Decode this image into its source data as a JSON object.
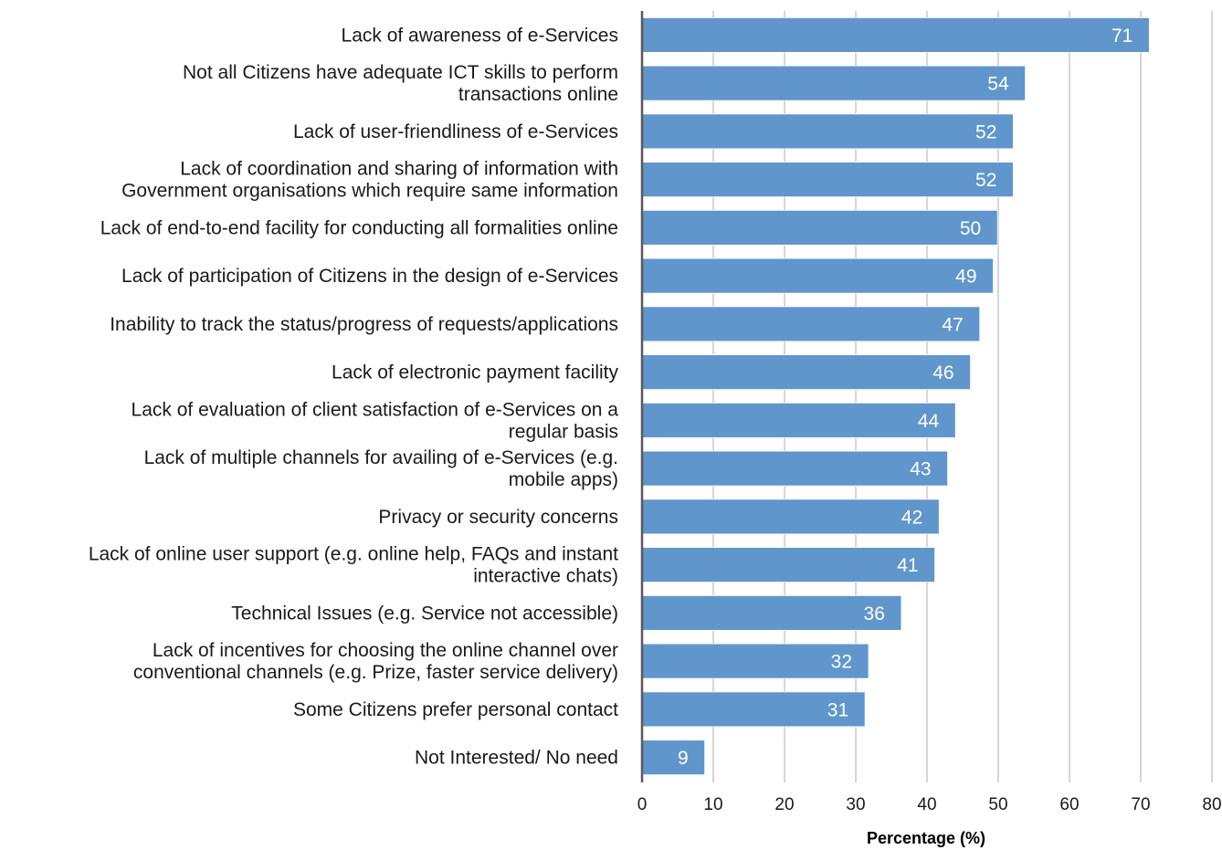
{
  "chart_data": {
    "type": "bar",
    "orientation": "horizontal",
    "categories": [
      "Lack of awareness of e-Services",
      "Not all Citizens have adequate ICT skills to perform transactions online",
      "Lack of user-friendliness of e-Services",
      "Lack of coordination and sharing of information with Government organisations which require same information",
      "Lack of end-to-end facility for conducting all formalities online",
      "Lack of participation of Citizens in the design of e-Services",
      "Inability to track the status/progress of requests/applications",
      "Lack of electronic payment facility",
      "Lack of evaluation of client satisfaction of e-Services on a regular basis",
      "Lack of multiple channels for availing of e-Services (e.g. mobile apps)",
      "Privacy or security concerns",
      "Lack of online user support (e.g. online help, FAQs and instant interactive chats)",
      "Technical Issues (e.g. Service not accessible)",
      "Lack of incentives for choosing the online channel over conventional channels (e.g. Prize, faster service delivery)",
      "Some Citizens prefer personal contact",
      "Not Interested/ No need"
    ],
    "category_lines": [
      [
        "Lack of awareness of e-Services"
      ],
      [
        "Not all Citizens have adequate ICT skills to perform",
        "transactions online"
      ],
      [
        "Lack of user-friendliness of e-Services"
      ],
      [
        "Lack of coordination and sharing of information with",
        "Government organisations which require same information"
      ],
      [
        "Lack of end-to-end facility for conducting all formalities online"
      ],
      [
        "Lack of participation of Citizens in the design of e-Services"
      ],
      [
        "Inability to track the status/progress of requests/applications"
      ],
      [
        "Lack of electronic payment facility"
      ],
      [
        "Lack of evaluation of client satisfaction of e-Services on a",
        "regular basis"
      ],
      [
        "Lack of multiple channels for availing of e-Services (e.g.",
        "mobile apps)"
      ],
      [
        "Privacy or security concerns"
      ],
      [
        "Lack of online user support (e.g. online help, FAQs and instant",
        "interactive chats)"
      ],
      [
        "Technical Issues (e.g. Service not accessible)"
      ],
      [
        "Lack of incentives for choosing the online channel over",
        "conventional channels (e.g. Prize, faster service delivery)"
      ],
      [
        "Some Citizens prefer personal contact"
      ],
      [
        "Not Interested/ No need"
      ]
    ],
    "values": [
      71.2,
      53.8,
      52.1,
      52.1,
      49.9,
      49.3,
      47.4,
      46.1,
      44.0,
      42.9,
      41.7,
      41.1,
      36.4,
      31.8,
      31.3,
      8.8
    ],
    "value_labels": [
      "71",
      "54",
      "52",
      "52",
      "50",
      "49",
      "47",
      "46",
      "44",
      "43",
      "42",
      "41",
      "36",
      "32",
      "31",
      "9"
    ],
    "xlabel": "Percentage (%)",
    "ylabel": "",
    "title": "",
    "xlim": [
      0,
      80
    ],
    "xticks": [
      0,
      10,
      20,
      30,
      40,
      50,
      60,
      70,
      80
    ],
    "grid": "vertical",
    "legend": "none",
    "colors": {
      "bar": "#6096cc",
      "bar_edge": "#ffffff",
      "grid": "#c0c0c0",
      "axis": "#595959",
      "value_text": "#ffffff",
      "text": "#1a1a1a"
    }
  }
}
